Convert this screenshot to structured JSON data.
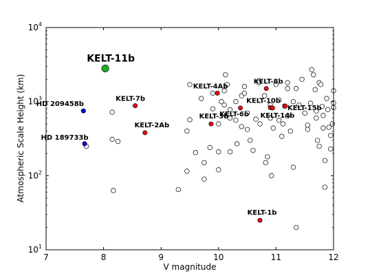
{
  "chart_data": {
    "type": "scatter",
    "xlabel": "V magnitude",
    "ylabel": "Atmospheric Scale Height (km)",
    "xlim": [
      7,
      12
    ],
    "ylim": [
      10,
      10000
    ],
    "yscale": "log",
    "x_ticks": [
      "7",
      "8",
      "9",
      "10",
      "11",
      "12"
    ],
    "y_ticks": [
      {
        "value": 10,
        "base": "10",
        "exp": "1"
      },
      {
        "value": 100,
        "base": "10",
        "exp": "2"
      },
      {
        "value": 1000,
        "base": "10",
        "exp": "3"
      },
      {
        "value": 10000,
        "base": "10",
        "exp": "4"
      }
    ],
    "grid": false,
    "colors": {
      "background_points": "#ffffff",
      "kelt": "#dd1111",
      "hd": "#0a0acc",
      "kelt11": "#22aa22",
      "edge": "#000000"
    },
    "background_points": [
      [
        7.7,
        250
      ],
      [
        8.15,
        720
      ],
      [
        8.15,
        310
      ],
      [
        8.25,
        290
      ],
      [
        8.17,
        63
      ],
      [
        9.3,
        65
      ],
      [
        9.45,
        115
      ],
      [
        9.45,
        400
      ],
      [
        9.5,
        570
      ],
      [
        9.5,
        1700
      ],
      [
        9.6,
        205
      ],
      [
        9.7,
        1100
      ],
      [
        9.75,
        150
      ],
      [
        9.75,
        90
      ],
      [
        9.85,
        240
      ],
      [
        9.9,
        1300
      ],
      [
        9.9,
        800
      ],
      [
        10.0,
        210
      ],
      [
        10.0,
        120
      ],
      [
        10.0,
        500
      ],
      [
        10.05,
        1000
      ],
      [
        10.1,
        900
      ],
      [
        10.1,
        1400
      ],
      [
        10.12,
        2300
      ],
      [
        10.15,
        1700
      ],
      [
        10.2,
        780
      ],
      [
        10.2,
        600
      ],
      [
        10.2,
        210
      ],
      [
        10.3,
        1000
      ],
      [
        10.3,
        560
      ],
      [
        10.32,
        270
      ],
      [
        10.4,
        460
      ],
      [
        10.4,
        1200
      ],
      [
        10.45,
        1600
      ],
      [
        10.45,
        1300
      ],
      [
        10.5,
        700
      ],
      [
        10.5,
        420
      ],
      [
        10.55,
        300
      ],
      [
        10.6,
        220
      ],
      [
        10.65,
        580
      ],
      [
        10.7,
        1900
      ],
      [
        10.7,
        1800
      ],
      [
        10.72,
        500
      ],
      [
        10.8,
        1200
      ],
      [
        10.82,
        150
      ],
      [
        10.85,
        180
      ],
      [
        10.9,
        900
      ],
      [
        10.9,
        600
      ],
      [
        10.92,
        100
      ],
      [
        10.95,
        440
      ],
      [
        11.0,
        1700
      ],
      [
        11.05,
        1050
      ],
      [
        11.05,
        560
      ],
      [
        11.1,
        340
      ],
      [
        11.12,
        500
      ],
      [
        11.15,
        870
      ],
      [
        11.2,
        1800
      ],
      [
        11.2,
        1500
      ],
      [
        11.2,
        640
      ],
      [
        11.25,
        400
      ],
      [
        11.3,
        130
      ],
      [
        11.3,
        1000
      ],
      [
        11.35,
        20
      ],
      [
        11.35,
        1500
      ],
      [
        11.4,
        900
      ],
      [
        11.45,
        2000
      ],
      [
        11.5,
        700
      ],
      [
        11.55,
        480
      ],
      [
        11.55,
        420
      ],
      [
        11.6,
        950
      ],
      [
        11.62,
        2700
      ],
      [
        11.65,
        2300
      ],
      [
        11.68,
        1450
      ],
      [
        11.7,
        750
      ],
      [
        11.7,
        600
      ],
      [
        11.72,
        300
      ],
      [
        11.75,
        250
      ],
      [
        11.75,
        1800
      ],
      [
        11.78,
        1700
      ],
      [
        11.8,
        860
      ],
      [
        11.82,
        650
      ],
      [
        11.82,
        440
      ],
      [
        11.85,
        160
      ],
      [
        11.85,
        70
      ],
      [
        11.88,
        1100
      ],
      [
        11.9,
        780
      ],
      [
        11.92,
        450
      ],
      [
        11.95,
        350
      ],
      [
        11.95,
        230
      ],
      [
        11.98,
        500
      ],
      [
        12.0,
        1400
      ],
      [
        12.0,
        960
      ],
      [
        12.0,
        830
      ]
    ],
    "labeled_points": [
      {
        "x": 8.03,
        "y": 2800,
        "label": "KELT-11b",
        "group": "kelt11"
      },
      {
        "x": 7.65,
        "y": 750,
        "label": "HD 209458b",
        "group": "hd"
      },
      {
        "x": 7.67,
        "y": 270,
        "label": "HD 189733b",
        "group": "hd"
      },
      {
        "x": 8.55,
        "y": 880,
        "label": "KELT-7b",
        "group": "kelt"
      },
      {
        "x": 8.72,
        "y": 380,
        "label": "KELT-2Ab",
        "group": "kelt"
      },
      {
        "x": 9.98,
        "y": 1300,
        "label": "KELT-4Ab",
        "group": "kelt"
      },
      {
        "x": 9.87,
        "y": 500,
        "label": "KELT-3b",
        "group": "kelt"
      },
      {
        "x": 10.38,
        "y": 820,
        "label": "KELT-6b",
        "group": "kelt"
      },
      {
        "x": 10.72,
        "y": 25,
        "label": "KELT-1b",
        "group": "kelt"
      },
      {
        "x": 10.83,
        "y": 1500,
        "label": "KELT-8b",
        "group": "kelt"
      },
      {
        "x": 10.9,
        "y": 830,
        "label": "KELT-10b",
        "group": "kelt"
      },
      {
        "x": 10.94,
        "y": 820,
        "label": "KELT-14b",
        "group": "kelt"
      },
      {
        "x": 11.16,
        "y": 870,
        "label": "KELT-15b",
        "group": "kelt"
      }
    ]
  }
}
